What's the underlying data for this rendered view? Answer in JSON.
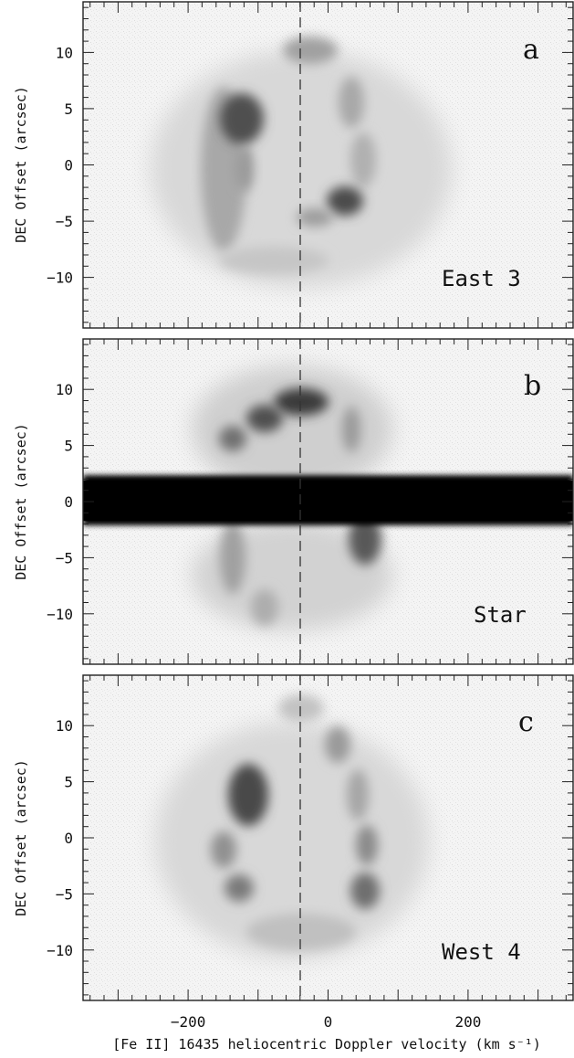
{
  "figure": {
    "xlabel": "[Fe II] 16435 heliocentric Doppler velocity (km s⁻¹)",
    "ylabel": "DEC Offset (arcsec)"
  },
  "chart_data": [
    {
      "type": "heatmap",
      "panel_letter": "a",
      "panel_name": "East 3",
      "xlim": [
        -350,
        350
      ],
      "ylim": [
        -14.5,
        14.5
      ],
      "x_ticks": [
        -200,
        0,
        200
      ],
      "y_ticks": [
        -10,
        -5,
        0,
        5,
        10
      ],
      "reference_line_x": -40,
      "features": [
        {
          "x": -150,
          "y": 0,
          "intensity": 0.35
        },
        {
          "x": -75,
          "y": 4,
          "intensity": 0.85
        },
        {
          "x": 20,
          "y": -3,
          "intensity": 0.8
        },
        {
          "x": -20,
          "y": 9.5,
          "intensity": 0.4
        }
      ]
    },
    {
      "type": "heatmap",
      "panel_letter": "b",
      "panel_name": "Star",
      "xlim": [
        -350,
        350
      ],
      "ylim": [
        -14.5,
        14.5
      ],
      "x_ticks": [
        -200,
        0,
        200
      ],
      "y_ticks": [
        -10,
        -5,
        0,
        5,
        10
      ],
      "reference_line_x": -40,
      "continuum_band_y": [
        -1.5,
        2.5
      ],
      "features": [
        {
          "x": -40,
          "y": 9.5,
          "intensity": 0.9
        },
        {
          "x": -110,
          "y": 7.5,
          "intensity": 0.7
        },
        {
          "x": 40,
          "y": -4.5,
          "intensity": 0.6
        }
      ]
    },
    {
      "type": "heatmap",
      "panel_letter": "c",
      "panel_name": "West 4",
      "xlim": [
        -350,
        350
      ],
      "ylim": [
        -14.5,
        14.5
      ],
      "x_ticks": [
        -200,
        0,
        200
      ],
      "y_ticks": [
        -10,
        -5,
        0,
        5,
        10
      ],
      "reference_line_x": -40,
      "features": [
        {
          "x": -100,
          "y": 5,
          "intensity": 0.85
        },
        {
          "x": 40,
          "y": -3,
          "intensity": 0.55
        },
        {
          "x": -120,
          "y": -2.5,
          "intensity": 0.45
        }
      ]
    }
  ]
}
